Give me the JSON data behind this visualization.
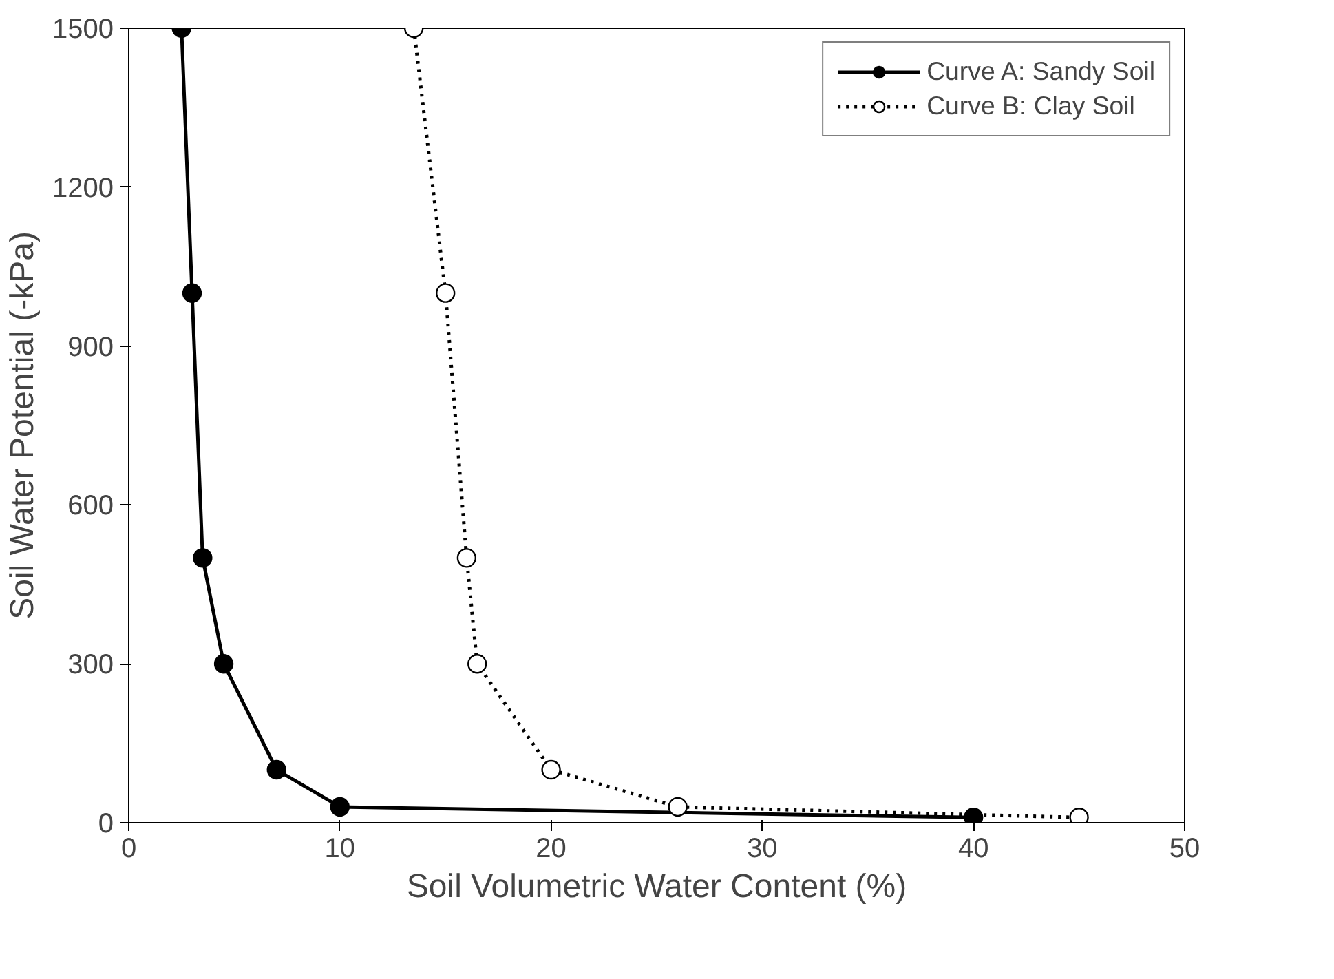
{
  "chart_data": {
    "type": "line",
    "xlabel": "Soil Volumetric Water Content (%)",
    "ylabel": "Soil Water Potential (-kPa)",
    "xlim": [
      0,
      50
    ],
    "xticks": [
      0,
      10,
      20,
      30,
      40,
      50
    ],
    "ylim": [
      0,
      1500
    ],
    "yticks": [
      0,
      300,
      600,
      900,
      1200,
      1500
    ],
    "grid": false,
    "legend": "top right",
    "series": [
      {
        "name": "Curve A: Sandy Soil",
        "color": "#000000",
        "x": [
          2.5,
          3,
          3.5,
          4.5,
          7,
          10,
          40
        ],
        "values": [
          1500,
          1000,
          500,
          300,
          100,
          30,
          10
        ],
        "marker": "circle",
        "line_style": "solid"
      },
      {
        "name": "Curve B: Clay Soil",
        "color": "#000000",
        "x": [
          13.5,
          15,
          16,
          16.5,
          20,
          26,
          45
        ],
        "values": [
          1500,
          1000,
          500,
          300,
          100,
          30,
          10
        ],
        "marker": "circle",
        "line_style": "dotted"
      }
    ]
  }
}
